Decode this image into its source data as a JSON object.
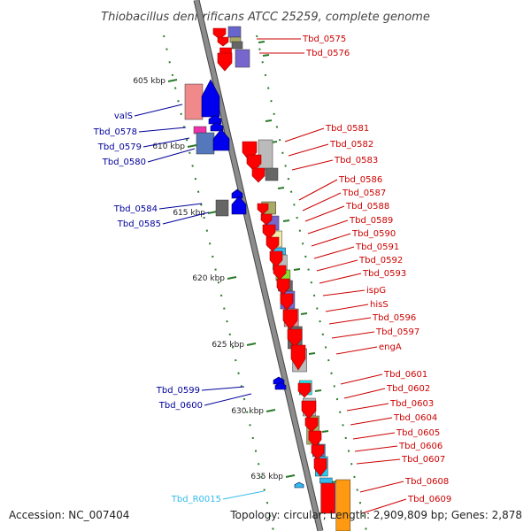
{
  "title": "Thiobacillus denitrificans ATCC 25259, complete genome",
  "accession": "Accession: NC_007404",
  "topology": "Topology: circular; Length: 2,909,809 bp; Genes: 2,878",
  "colors": {
    "backbone": "#8c8c8c",
    "backbone_edge": "#444444",
    "reverse_label": "#cc0000",
    "forward_label": "#000099",
    "rna_label": "#33bbee",
    "ruler_dot": "#2a7a2a",
    "cds_reverse": "#ff0000",
    "cds_forward": "#0000ee",
    "rna_arrow": "#33bbee"
  },
  "ruler": [
    {
      "label": "605 kbp"
    },
    {
      "label": "610 kbp"
    },
    {
      "label": "615 kbp"
    },
    {
      "label": "620 kbp"
    },
    {
      "label": "625 kbp"
    },
    {
      "label": "630 kbp"
    },
    {
      "label": "635 kbp"
    }
  ],
  "reverse_labels": [
    {
      "name": "Tbd_0575"
    },
    {
      "name": "Tbd_0576"
    },
    {
      "name": "Tbd_0581"
    },
    {
      "name": "Tbd_0582"
    },
    {
      "name": "Tbd_0583"
    },
    {
      "name": "Tbd_0586"
    },
    {
      "name": "Tbd_0587"
    },
    {
      "name": "Tbd_0588"
    },
    {
      "name": "Tbd_0589"
    },
    {
      "name": "Tbd_0590"
    },
    {
      "name": "Tbd_0591"
    },
    {
      "name": "Tbd_0592"
    },
    {
      "name": "Tbd_0593"
    },
    {
      "name": "ispG"
    },
    {
      "name": "hisS"
    },
    {
      "name": "Tbd_0596"
    },
    {
      "name": "Tbd_0597"
    },
    {
      "name": "engA"
    },
    {
      "name": "Tbd_0601"
    },
    {
      "name": "Tbd_0602"
    },
    {
      "name": "Tbd_0603"
    },
    {
      "name": "Tbd_0604"
    },
    {
      "name": "Tbd_0605"
    },
    {
      "name": "Tbd_0606"
    },
    {
      "name": "Tbd_0607"
    },
    {
      "name": "Tbd_0608"
    },
    {
      "name": "Tbd_0609"
    }
  ],
  "forward_labels": [
    {
      "name": "valS"
    },
    {
      "name": "Tbd_0578"
    },
    {
      "name": "Tbd_0579"
    },
    {
      "name": "Tbd_0580"
    },
    {
      "name": "Tbd_0584"
    },
    {
      "name": "Tbd_0585"
    },
    {
      "name": "Tbd_0599"
    },
    {
      "name": "Tbd_0600"
    }
  ],
  "rna_labels": [
    {
      "name": "Tbd_R0015"
    }
  ]
}
